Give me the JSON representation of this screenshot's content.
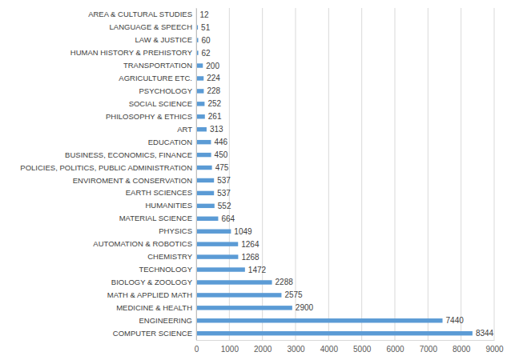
{
  "chart_data": {
    "type": "bar",
    "orientation": "horizontal",
    "categories": [
      "AREA & CULTURAL STUDIES",
      "LANGUAGE & SPEECH",
      "LAW & JUSTICE",
      "HUMAN HISTORY & PREHISTORY",
      "TRANSPORTATION",
      "AGRICULTURE ETC.",
      "PSYCHOLOGY",
      "SOCIAL SCIENCE",
      "PHILOSOPHY & ETHICS",
      "ART",
      "EDUCATION",
      "BUSINESS, ECONOMICS, FINANCE",
      "POLICIES, POLITICS, PUBLIC ADMINISTRATION",
      "ENVIROMENT & CONSERVATION",
      "EARTH SCIENCES",
      "HUMANITIES",
      "MATERIAL SCIENCE",
      "PHYSICS",
      "AUTOMATION & ROBOTICS",
      "CHEMISTRY",
      "TECHNOLOGY",
      "BIOLOGY & ZOOLOGY",
      "MATH & APPLIED MATH",
      "MEDICINE & HEALTH",
      "ENGINEERING",
      "COMPUTER SCIENCE"
    ],
    "values": [
      12,
      51,
      60,
      62,
      200,
      224,
      228,
      252,
      261,
      313,
      446,
      450,
      475,
      537,
      537,
      552,
      664,
      1049,
      1264,
      1268,
      1472,
      2288,
      2575,
      2900,
      7440,
      8344
    ],
    "color": "#5b9bd5",
    "xlim": [
      0,
      9000
    ],
    "xticks": [
      0,
      1000,
      2000,
      3000,
      4000,
      5000,
      6000,
      7000,
      8000,
      9000
    ],
    "grid": true,
    "data_labels": true
  }
}
